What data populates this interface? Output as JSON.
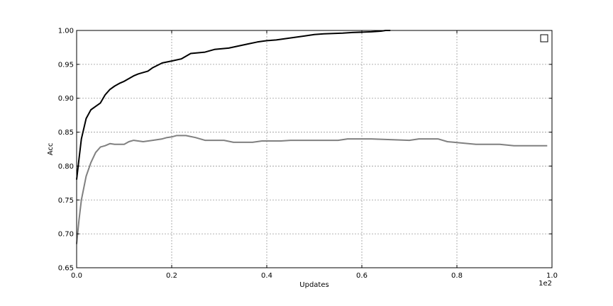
{
  "chart_data": {
    "type": "line",
    "title": "",
    "xlabel": "Updates",
    "ylabel": "Acc",
    "x_multiplier": "1e2",
    "xlim": [
      0.0,
      1.0
    ],
    "ylim": [
      0.65,
      1.0
    ],
    "x_ticks": [
      {
        "value": 0.0,
        "label": "0.0"
      },
      {
        "value": 0.2,
        "label": "0.2"
      },
      {
        "value": 0.4,
        "label": "0.4"
      },
      {
        "value": 0.6,
        "label": "0.6"
      },
      {
        "value": 0.8,
        "label": "0.8"
      },
      {
        "value": 1.0,
        "label": "1.0"
      }
    ],
    "y_ticks": [
      {
        "value": 0.65,
        "label": "0.65"
      },
      {
        "value": 0.7,
        "label": "0.70"
      },
      {
        "value": 0.75,
        "label": "0.75"
      },
      {
        "value": 0.8,
        "label": "0.80"
      },
      {
        "value": 0.85,
        "label": "0.85"
      },
      {
        "value": 0.9,
        "label": "0.90"
      },
      {
        "value": 0.95,
        "label": "0.95"
      },
      {
        "value": 1.0,
        "label": "1.00"
      }
    ],
    "grid": true,
    "legend": {
      "placement": "top-right",
      "entries": []
    },
    "series": [
      {
        "color": "#000000",
        "x": [
          0.0,
          0.005,
          0.01,
          0.02,
          0.03,
          0.04,
          0.05,
          0.06,
          0.07,
          0.08,
          0.09,
          0.1,
          0.12,
          0.13,
          0.15,
          0.16,
          0.18,
          0.2,
          0.22,
          0.23,
          0.24,
          0.27,
          0.28,
          0.29,
          0.32,
          0.34,
          0.36,
          0.38,
          0.4,
          0.42,
          0.44,
          0.46,
          0.48,
          0.5,
          0.52,
          0.56,
          0.58,
          0.62,
          0.64,
          0.65,
          0.66
        ],
        "y": [
          0.78,
          0.81,
          0.84,
          0.87,
          0.883,
          0.888,
          0.893,
          0.905,
          0.913,
          0.918,
          0.922,
          0.925,
          0.933,
          0.936,
          0.94,
          0.945,
          0.952,
          0.955,
          0.958,
          0.962,
          0.966,
          0.968,
          0.97,
          0.972,
          0.974,
          0.977,
          0.98,
          0.983,
          0.985,
          0.986,
          0.988,
          0.99,
          0.992,
          0.994,
          0.995,
          0.996,
          0.997,
          0.998,
          0.999,
          1.0,
          1.0
        ]
      },
      {
        "color": "#808080",
        "x": [
          0.0,
          0.005,
          0.01,
          0.02,
          0.03,
          0.04,
          0.05,
          0.06,
          0.07,
          0.08,
          0.1,
          0.11,
          0.12,
          0.14,
          0.16,
          0.18,
          0.19,
          0.2,
          0.21,
          0.23,
          0.25,
          0.27,
          0.31,
          0.33,
          0.37,
          0.39,
          0.43,
          0.45,
          0.49,
          0.55,
          0.57,
          0.62,
          0.7,
          0.72,
          0.76,
          0.78,
          0.81,
          0.84,
          0.89,
          0.92,
          0.99
        ],
        "y": [
          0.685,
          0.72,
          0.75,
          0.785,
          0.805,
          0.82,
          0.828,
          0.83,
          0.833,
          0.832,
          0.832,
          0.836,
          0.838,
          0.836,
          0.838,
          0.84,
          0.842,
          0.843,
          0.845,
          0.845,
          0.842,
          0.838,
          0.838,
          0.835,
          0.835,
          0.837,
          0.837,
          0.838,
          0.838,
          0.838,
          0.84,
          0.84,
          0.838,
          0.84,
          0.84,
          0.836,
          0.834,
          0.832,
          0.832,
          0.83,
          0.83
        ]
      }
    ]
  }
}
